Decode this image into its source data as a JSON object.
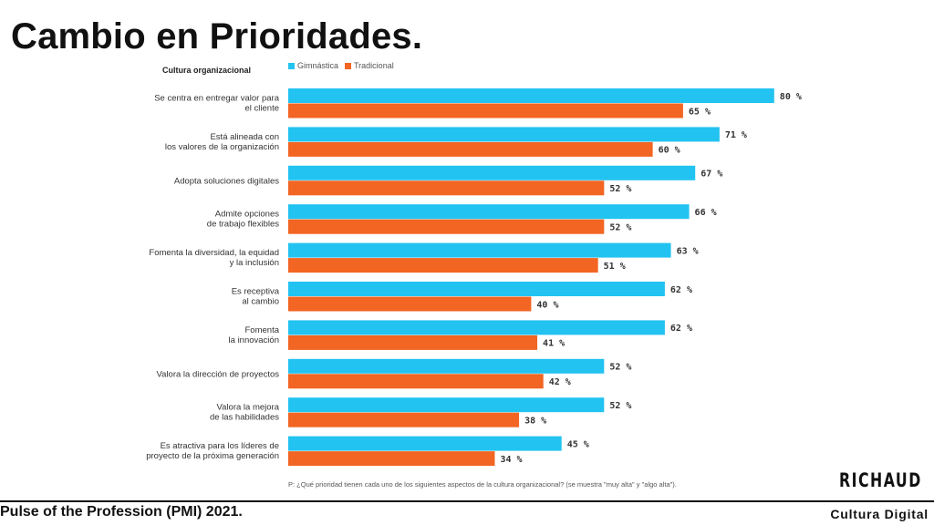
{
  "slide": {
    "title": "Cambio en Prioridades.",
    "source": "Pulse of the Profession (PMI) 2021.",
    "logo": "RICHAUD",
    "brand": "Cultura Digital",
    "question": "P: ¿Qué prioridad tienen cada uno de los siguientes aspectos de la cultura organizacional? (se muestra \"muy alta\" y \"algo alta\")."
  },
  "chart_data": {
    "type": "bar",
    "orientation": "horizontal",
    "title": "Cultura organizacional",
    "xlabel": "",
    "ylabel": "",
    "xlim": [
      0,
      100
    ],
    "grid": false,
    "legend_position": "top",
    "value_suffix": " %",
    "categories": [
      [
        "Se centra en entregar valor para",
        "el cliente"
      ],
      [
        "Está alineada con",
        "los valores de la organización"
      ],
      [
        "Adopta soluciones digitales"
      ],
      [
        "Admite opciones",
        "de trabajo flexibles"
      ],
      [
        "Fomenta la diversidad, la equidad",
        "y la inclusión"
      ],
      [
        "Es receptiva",
        "al cambio"
      ],
      [
        "Fomenta",
        "la innovación"
      ],
      [
        "Valora la dirección de proyectos"
      ],
      [
        "Valora la mejora",
        "de las habilidades"
      ],
      [
        "Es atractiva para los líderes de",
        "proyecto de la próxima generación"
      ]
    ],
    "series": [
      {
        "name": "Gimnástica",
        "color": "#22c3f1",
        "values": [
          80,
          71,
          67,
          66,
          63,
          62,
          62,
          52,
          52,
          45
        ]
      },
      {
        "name": "Tradicional",
        "color": "#f26522",
        "values": [
          65,
          60,
          52,
          52,
          51,
          40,
          41,
          42,
          38,
          34
        ]
      }
    ]
  }
}
